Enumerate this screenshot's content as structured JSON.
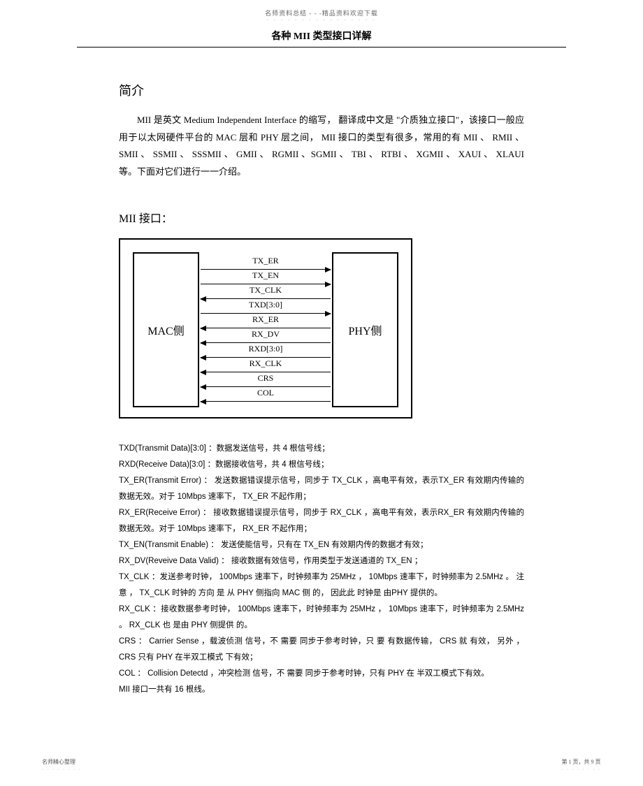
{
  "header": {
    "small_text": "名师资料总结 - - -精品资料欢迎下载",
    "dots": "· · · · · · · · · · · · · · · ·"
  },
  "title": "各种  MII   类型接口详解",
  "intro_heading": "简介",
  "intro_p1": "MII  是英文   Medium Independent Interface   的缩写， 翻译成中文是 \"介质独立接口\"，该接口一般应用于以太网硬件平台的        MAC  层和  PHY  层之间，  MII  接口的类型有很多，常用的有      MII 、 RMII 、 SMII 、 SSMII 、 SSSMII 、 GMII 、 RGMII 、SGMII 、  TBI 、 RTBI 、 XGMII 、 XAUI 、 XLAUI   等。下面对它们进行一一介绍。",
  "section_title": "MII   接口：",
  "diagram": {
    "left_box": "MAC侧",
    "right_box": "PHY侧",
    "signals": [
      {
        "label": "TX_ER",
        "dir": "right"
      },
      {
        "label": "TX_EN",
        "dir": "right"
      },
      {
        "label": "TX_CLK",
        "dir": "left"
      },
      {
        "label": "TXD[3:0]",
        "dir": "right"
      },
      {
        "label": "RX_ER",
        "dir": "left"
      },
      {
        "label": "RX_DV",
        "dir": "left"
      },
      {
        "label": "RXD[3:0]",
        "dir": "left"
      },
      {
        "label": "RX_CLK",
        "dir": "left"
      },
      {
        "label": "CRS",
        "dir": "left"
      },
      {
        "label": "COL",
        "dir": "left"
      }
    ]
  },
  "body": {
    "l1": "TXD(Transmit Data)[3:0]   ：数据发送信号，共    4 根信号线；",
    "l2": "RXD(Receive Data)[3:0]   ：数据接收信号，共    4 根信号线；",
    "l3": "TX_ER(Transmit  Error) ：   发送数据错误提示信号，同步于       TX_CLK  ，高电平有效，表示TX_ER  有效期内传输的数据无效。对于       10Mbps 速率下，  TX_ER  不起作用；",
    "l4": "RX_ER(Receive  Error) ：   接收数据错误提示信号，同步于        RX_CLK  ，高电平有效，表示RX_ER  有效期内传输的数据无效。对于       10Mbps 速率下，  RX_ER  不起作用；",
    "l5": "TX_EN(Transmit Enable)   ：  发送使能信号，只有在     TX_EN  有效期内传的数据才有效；",
    "l6": "RX_DV(Reveive Data Valid)    ：  接收数据有效信号，作用类型于发送通道的       TX_EN  ；",
    "l7": "TX_CLK  ：发送参考时钟，    100Mbps  速率下，时钟频率为    25MHz ， 10Mbps  速率下，时钟频率为  2.5MHz 。 注意 ， TX_CLK   时钟的 方向 是 从  PHY  侧指向   MAC  侧 的， 因此此 时钟是 由PHY  提供的。",
    "l8": "RX_CLK  ：接收数据参考时钟，    100Mbps  速率下，时钟频率为    25MHz ， 10Mbps  速率下，时钟频率为  2.5MHz 。 RX_CLK  也 是由  PHY  侧提供 的。",
    "l9": "CRS ： Carrier Sense  ，载波侦测  信号，不  需要  同步于参考时钟，只   要  有数据传输，   CRS 就 有效，  另外  ， CRS 只有  PHY  在半双工模式   下有效；",
    "l10": "COL  ： Collision Detectd   ，冲突检测  信号，不  需要  同步于参考时钟，只有    PHY  在 半双工模式下有效。",
    "l11": "MII  接口一共有   16 根线。"
  },
  "footer": {
    "left": "名师精心整理",
    "right": "第 1 页，共 9 页",
    "dots": "· · · · · · · ·"
  }
}
